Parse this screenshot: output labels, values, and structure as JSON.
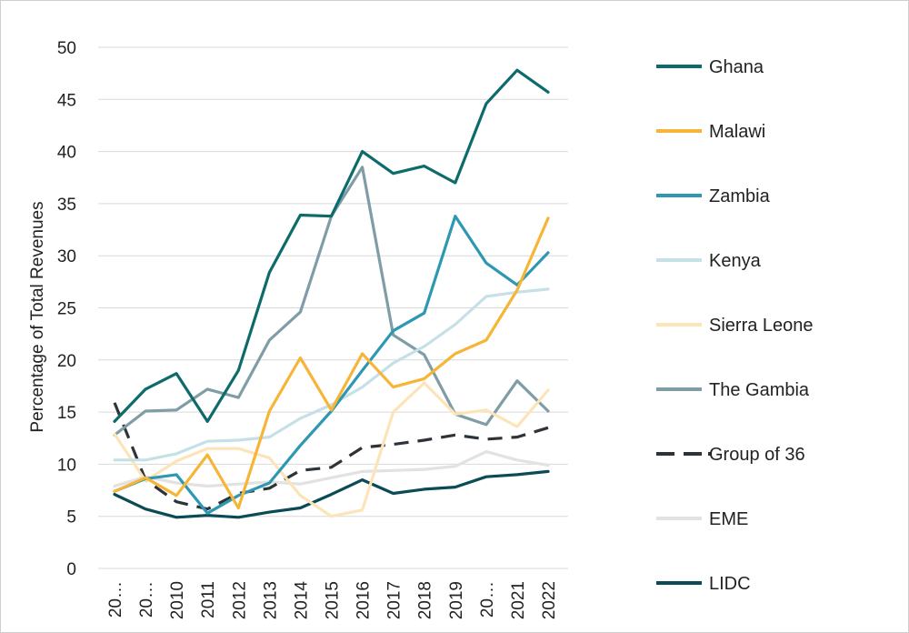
{
  "chart_data": {
    "type": "line",
    "title": "",
    "xlabel": "",
    "ylabel": "Percentage of Total Revenues",
    "ylim": [
      0,
      50
    ],
    "yticks": [
      0,
      5,
      10,
      15,
      20,
      25,
      30,
      35,
      40,
      45,
      50
    ],
    "categories": [
      "20…",
      "20…",
      "2010",
      "2011",
      "2012",
      "2013",
      "2014",
      "2015",
      "2016",
      "2017",
      "2018",
      "2019",
      "20…",
      "2021",
      "2022"
    ],
    "grid": true,
    "legend_position": "right",
    "series": [
      {
        "name": "Ghana",
        "color": "#0d6b6b",
        "dash": "solid",
        "values": [
          14.1,
          17.2,
          18.7,
          14.1,
          19.0,
          28.4,
          33.9,
          33.8,
          40.0,
          37.9,
          38.6,
          37.0,
          44.6,
          47.8,
          45.7
        ]
      },
      {
        "name": "Malawi",
        "color": "#f7b538",
        "dash": "solid",
        "values": [
          7.4,
          8.7,
          7.0,
          10.9,
          5.8,
          15.1,
          20.2,
          15.2,
          20.6,
          17.4,
          18.2,
          20.6,
          21.9,
          26.7,
          33.6
        ]
      },
      {
        "name": "Zambia",
        "color": "#2e98b3",
        "dash": "solid",
        "values": [
          7.4,
          8.6,
          9.0,
          5.3,
          7.0,
          8.2,
          11.8,
          15.1,
          19.0,
          22.8,
          24.5,
          33.8,
          29.3,
          27.2,
          30.3
        ]
      },
      {
        "name": "Kenya",
        "color": "#c5e1e6",
        "dash": "solid",
        "values": [
          10.4,
          10.4,
          11.0,
          12.2,
          12.3,
          12.6,
          14.4,
          15.7,
          17.4,
          19.7,
          21.3,
          23.4,
          26.1,
          26.5,
          26.8
        ]
      },
      {
        "name": "Sierra Leone",
        "color": "#fde4b8",
        "dash": "solid",
        "values": [
          12.9,
          8.4,
          10.3,
          11.5,
          11.5,
          10.6,
          7.0,
          5.0,
          5.6,
          15.0,
          17.8,
          14.8,
          15.2,
          13.6,
          17.1
        ]
      },
      {
        "name": "The Gambia",
        "color": "#7f9da6",
        "dash": "solid",
        "values": [
          12.8,
          15.1,
          15.2,
          17.2,
          16.4,
          21.9,
          24.6,
          33.8,
          38.5,
          22.4,
          20.5,
          14.8,
          13.8,
          18.0,
          15.1
        ]
      },
      {
        "name": "Group of 36",
        "color": "#2d3338",
        "dash": "dashed",
        "values": [
          15.9,
          8.5,
          6.4,
          5.7,
          7.2,
          7.7,
          9.4,
          9.7,
          11.6,
          11.9,
          12.3,
          12.8,
          12.4,
          12.6,
          13.5
        ]
      },
      {
        "name": "EME",
        "color": "#e2e2e2",
        "dash": "solid",
        "values": [
          7.9,
          8.8,
          8.2,
          7.9,
          8.1,
          8.3,
          8.1,
          8.7,
          9.3,
          9.4,
          9.5,
          9.8,
          11.2,
          10.4,
          9.9
        ]
      },
      {
        "name": "LIDC",
        "color": "#0b4b55",
        "dash": "solid",
        "values": [
          7.1,
          5.7,
          4.9,
          5.1,
          4.9,
          5.4,
          5.8,
          7.1,
          8.5,
          7.2,
          7.6,
          7.8,
          8.8,
          9.0,
          9.3
        ]
      }
    ]
  }
}
